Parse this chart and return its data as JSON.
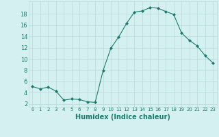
{
  "x": [
    0,
    1,
    2,
    3,
    4,
    5,
    6,
    7,
    8,
    9,
    10,
    11,
    12,
    13,
    14,
    15,
    16,
    17,
    18,
    19,
    20,
    21,
    22,
    23
  ],
  "y": [
    5.1,
    4.7,
    5.0,
    4.3,
    2.7,
    2.9,
    2.8,
    2.4,
    2.3,
    7.9,
    11.9,
    13.9,
    16.3,
    18.3,
    18.5,
    19.1,
    19.0,
    18.4,
    17.9,
    14.6,
    13.3,
    12.3,
    10.6,
    9.3
  ],
  "line_color": "#1a7a6e",
  "marker": "D",
  "marker_size": 2.0,
  "bg_color": "#d4f0f0",
  "grid_color": "#b8dada",
  "tick_color": "#1a7a6e",
  "xlabel": "Humidex (Indice chaleur)",
  "xlabel_fontsize": 7,
  "ylabel_ticks": [
    2,
    4,
    6,
    8,
    10,
    12,
    14,
    16,
    18
  ],
  "xlim": [
    -0.5,
    23.5
  ],
  "ylim": [
    1.5,
    20.2
  ],
  "tick_fontsize_x": 5,
  "tick_fontsize_y": 6
}
